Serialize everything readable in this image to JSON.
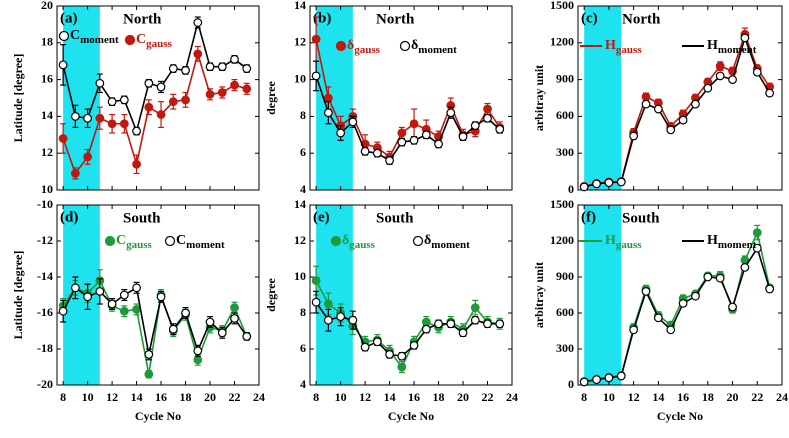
{
  "chart_data": [
    {
      "type": "line",
      "panel_label": "(a)",
      "region": "North",
      "ylabel": "Latitude [degree]",
      "xlim": [
        7.5,
        24
      ],
      "xticks": [
        8,
        10,
        12,
        14,
        16,
        18,
        20,
        22,
        24
      ],
      "show_xtick_labels": false,
      "ylim": [
        10,
        20
      ],
      "yticks": [
        10,
        12,
        14,
        16,
        18,
        20
      ],
      "highlight": [
        8,
        11
      ],
      "highlight_color": "#1ee3ef",
      "legend_marker": "point",
      "x": [
        8,
        9,
        10,
        11,
        12,
        13,
        14,
        15,
        16,
        17,
        18,
        19,
        20,
        21,
        22,
        23
      ],
      "series": [
        {
          "name": "C",
          "subscript": "moment",
          "color": "#000000",
          "marker": "open",
          "values": [
            16.8,
            14.0,
            13.9,
            15.8,
            14.8,
            14.9,
            13.2,
            15.8,
            15.6,
            16.6,
            16.5,
            19.1,
            16.7,
            16.7,
            17.1,
            16.6
          ],
          "errors": [
            1.1,
            0.6,
            0.5,
            0.5,
            0.2,
            0.2,
            0.2,
            0.2,
            0.3,
            0.2,
            0.2,
            0.3,
            0.2,
            0.2,
            0.2,
            0.2
          ]
        },
        {
          "name": "C",
          "subscript": "gauss",
          "color": "#c0190f",
          "marker": "filled",
          "values": [
            12.8,
            10.9,
            11.8,
            13.9,
            13.6,
            13.6,
            11.4,
            14.5,
            14.1,
            14.8,
            14.9,
            17.4,
            15.2,
            15.3,
            15.7,
            15.5
          ],
          "errors": [
            0.8,
            0.3,
            0.4,
            0.6,
            0.5,
            0.5,
            0.5,
            0.4,
            0.7,
            0.4,
            0.4,
            0.4,
            0.3,
            0.3,
            0.3,
            0.3
          ]
        }
      ]
    },
    {
      "type": "line",
      "panel_label": "(b)",
      "region": "North",
      "ylabel": "degree",
      "xlim": [
        7.5,
        24
      ],
      "xticks": [
        8,
        10,
        12,
        14,
        16,
        18,
        20,
        22,
        24
      ],
      "show_xtick_labels": false,
      "ylim": [
        4,
        14
      ],
      "yticks": [
        4,
        6,
        8,
        10,
        12,
        14
      ],
      "highlight": [
        8,
        11
      ],
      "highlight_color": "#1ee3ef",
      "legend_marker": "point",
      "x": [
        8,
        9,
        10,
        11,
        12,
        13,
        14,
        15,
        16,
        17,
        18,
        19,
        20,
        21,
        22,
        23
      ],
      "series": [
        {
          "name": "δ",
          "subscript": "gauss",
          "color": "#c0190f",
          "marker": "filled",
          "values": [
            12.2,
            9.0,
            7.5,
            8.0,
            6.5,
            6.3,
            5.8,
            7.1,
            7.6,
            7.3,
            6.9,
            8.6,
            7.0,
            7.2,
            8.4,
            7.4
          ],
          "errors": [
            1.2,
            0.6,
            0.5,
            0.4,
            0.5,
            0.3,
            0.3,
            0.3,
            0.8,
            0.5,
            0.3,
            0.4,
            0.3,
            0.3,
            0.3,
            0.3
          ]
        },
        {
          "name": "δ",
          "subscript": "moment",
          "color": "#000000",
          "marker": "open",
          "values": [
            10.2,
            8.2,
            7.1,
            7.7,
            6.1,
            6.0,
            5.6,
            6.6,
            6.7,
            7.0,
            6.5,
            8.2,
            6.9,
            7.5,
            7.9,
            7.3
          ],
          "errors": [
            0.8,
            0.6,
            0.4,
            0.3,
            0.2,
            0.2,
            0.2,
            0.2,
            0.2,
            0.2,
            0.2,
            0.3,
            0.2,
            0.2,
            0.2,
            0.2
          ]
        }
      ]
    },
    {
      "type": "line",
      "panel_label": "(c)",
      "region": "North",
      "ylabel": "arbitray unit",
      "xlim": [
        7.5,
        24
      ],
      "xticks": [
        8,
        10,
        12,
        14,
        16,
        18,
        20,
        22,
        24
      ],
      "show_xtick_labels": false,
      "ylim": [
        0,
        1500
      ],
      "yticks": [
        0,
        300,
        600,
        900,
        1200,
        1500
      ],
      "highlight": [
        8,
        11
      ],
      "highlight_color": "#1ee3ef",
      "legend_marker": "line",
      "x": [
        8,
        9,
        10,
        11,
        12,
        13,
        14,
        15,
        16,
        17,
        18,
        19,
        20,
        21,
        22,
        23
      ],
      "series": [
        {
          "name": "H",
          "subscript": "gauss",
          "color": "#c0190f",
          "marker": "filled",
          "values": [
            30,
            55,
            65,
            70,
            470,
            760,
            710,
            520,
            620,
            750,
            880,
            1010,
            970,
            1270,
            990,
            840
          ],
          "errors": [
            5,
            5,
            5,
            5,
            30,
            30,
            30,
            25,
            30,
            30,
            30,
            35,
            30,
            50,
            30,
            30
          ]
        },
        {
          "name": "H",
          "subscript": "moment",
          "color": "#000000",
          "marker": "open",
          "values": [
            25,
            50,
            60,
            65,
            440,
            700,
            660,
            490,
            570,
            700,
            830,
            930,
            900,
            1240,
            960,
            790
          ],
          "errors": [
            5,
            5,
            5,
            5,
            15,
            15,
            15,
            15,
            15,
            15,
            15,
            15,
            15,
            20,
            15,
            15
          ]
        }
      ]
    },
    {
      "type": "line",
      "panel_label": "(d)",
      "region": "South",
      "ylabel": "Latitude [degree]",
      "xlabel": "Cycle No",
      "xlim": [
        7.5,
        24
      ],
      "xticks": [
        8,
        10,
        12,
        14,
        16,
        18,
        20,
        22,
        24
      ],
      "show_xtick_labels": true,
      "ylim": [
        -20,
        -10
      ],
      "yticks": [
        -20,
        -18,
        -16,
        -14,
        -12,
        -10
      ],
      "highlight": [
        8,
        11
      ],
      "highlight_color": "#1ee3ef",
      "legend_marker": "point",
      "x": [
        8,
        9,
        10,
        11,
        12,
        13,
        14,
        15,
        16,
        17,
        18,
        19,
        20,
        21,
        22,
        23
      ],
      "series": [
        {
          "name": "C",
          "subscript": "gauss",
          "color": "#1f9a3a",
          "marker": "filled",
          "values": [
            -15.6,
            -14.6,
            -14.9,
            -14.2,
            -15.6,
            -15.9,
            -15.8,
            -19.4,
            -15.0,
            -17.0,
            -16.1,
            -18.6,
            -16.8,
            -17.0,
            -15.7,
            -17.3
          ],
          "errors": [
            0.4,
            0.4,
            0.5,
            0.6,
            0.3,
            0.3,
            0.3,
            0.2,
            0.3,
            0.3,
            0.3,
            0.3,
            0.3,
            0.3,
            0.3,
            0.2
          ]
        },
        {
          "name": "C",
          "subscript": "moment",
          "color": "#000000",
          "marker": "open",
          "values": [
            -15.9,
            -14.6,
            -15.1,
            -14.8,
            -15.5,
            -15.0,
            -14.6,
            -18.3,
            -15.1,
            -16.9,
            -16.0,
            -18.1,
            -16.5,
            -17.1,
            -16.3,
            -17.3
          ],
          "errors": [
            0.6,
            0.6,
            0.7,
            0.7,
            0.3,
            0.3,
            0.3,
            0.3,
            0.3,
            0.3,
            0.3,
            0.3,
            0.3,
            0.3,
            0.3,
            0.2
          ]
        }
      ]
    },
    {
      "type": "line",
      "panel_label": "(e)",
      "region": "South",
      "ylabel": "degree",
      "xlabel": "Cycle No",
      "xlim": [
        7.5,
        24
      ],
      "xticks": [
        8,
        10,
        12,
        14,
        16,
        18,
        20,
        22,
        24
      ],
      "show_xtick_labels": true,
      "ylim": [
        4,
        14
      ],
      "yticks": [
        4,
        6,
        8,
        10,
        12,
        14
      ],
      "highlight": [
        8,
        11
      ],
      "highlight_color": "#1ee3ef",
      "legend_marker": "point",
      "x": [
        8,
        9,
        10,
        11,
        12,
        13,
        14,
        15,
        16,
        17,
        18,
        19,
        20,
        21,
        22,
        23
      ],
      "series": [
        {
          "name": "δ",
          "subscript": "gauss",
          "color": "#1f9a3a",
          "marker": "filled",
          "values": [
            9.8,
            8.5,
            8.0,
            7.3,
            6.4,
            6.5,
            5.9,
            5.0,
            6.4,
            7.5,
            7.2,
            7.5,
            7.1,
            8.3,
            7.5,
            7.4
          ],
          "errors": [
            0.8,
            0.6,
            0.5,
            0.5,
            0.3,
            0.3,
            0.3,
            0.3,
            0.3,
            0.3,
            0.3,
            0.3,
            0.3,
            0.4,
            0.3,
            0.3
          ]
        },
        {
          "name": "δ",
          "subscript": "moment",
          "color": "#000000",
          "marker": "open",
          "values": [
            8.6,
            7.6,
            7.8,
            7.6,
            6.1,
            6.4,
            5.7,
            5.6,
            6.2,
            7.1,
            7.4,
            7.4,
            6.9,
            7.6,
            7.4,
            7.4
          ],
          "errors": [
            0.6,
            0.6,
            0.5,
            0.5,
            0.2,
            0.2,
            0.2,
            0.2,
            0.2,
            0.2,
            0.2,
            0.2,
            0.2,
            0.2,
            0.2,
            0.2
          ]
        }
      ]
    },
    {
      "type": "line",
      "panel_label": "(f)",
      "region": "South",
      "ylabel": "arbitray unit",
      "xlabel": "Cycle No",
      "xlim": [
        7.5,
        24
      ],
      "xticks": [
        8,
        10,
        12,
        14,
        16,
        18,
        20,
        22,
        24
      ],
      "show_xtick_labels": true,
      "ylim": [
        0,
        1500
      ],
      "yticks": [
        0,
        300,
        600,
        900,
        1200,
        1500
      ],
      "highlight": [
        8,
        11
      ],
      "highlight_color": "#1ee3ef",
      "legend_marker": "line",
      "x": [
        8,
        9,
        10,
        11,
        12,
        13,
        14,
        15,
        16,
        17,
        18,
        19,
        20,
        21,
        22,
        23
      ],
      "series": [
        {
          "name": "H",
          "subscript": "gauss",
          "color": "#1f9a3a",
          "marker": "filled",
          "values": [
            30,
            50,
            65,
            80,
            480,
            800,
            580,
            500,
            720,
            760,
            910,
            910,
            630,
            1040,
            1270,
            810
          ],
          "errors": [
            5,
            5,
            5,
            5,
            30,
            30,
            30,
            25,
            30,
            25,
            25,
            35,
            30,
            35,
            60,
            25
          ]
        },
        {
          "name": "H",
          "subscript": "moment",
          "color": "#000000",
          "marker": "open",
          "values": [
            25,
            45,
            60,
            75,
            460,
            780,
            560,
            460,
            680,
            740,
            900,
            890,
            650,
            980,
            1140,
            800
          ],
          "errors": [
            5,
            5,
            5,
            5,
            15,
            15,
            15,
            15,
            15,
            15,
            15,
            15,
            15,
            15,
            20,
            15
          ]
        }
      ]
    }
  ]
}
